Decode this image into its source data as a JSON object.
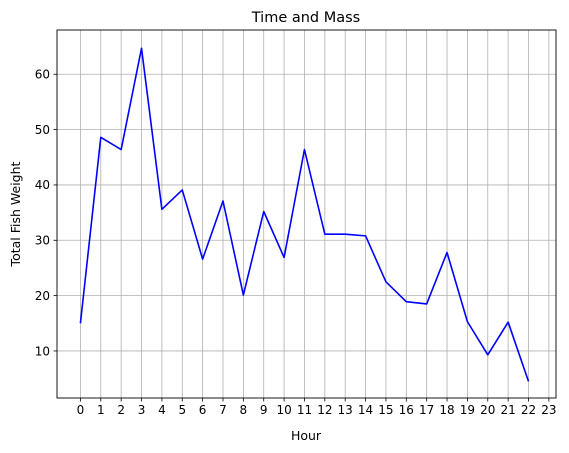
{
  "chart_data": {
    "type": "line",
    "title": "Time and Mass",
    "xlabel": "Hour",
    "ylabel": "Total Fish Weight",
    "x_ticks": [
      "0",
      "1",
      "2",
      "3",
      "4",
      "5",
      "6",
      "7",
      "8",
      "9",
      "10",
      "11",
      "12",
      "13",
      "14",
      "15",
      "16",
      "17",
      "18",
      "19",
      "20",
      "21",
      "22",
      "23"
    ],
    "y_ticks": [
      "10",
      "20",
      "30",
      "40",
      "50",
      "60"
    ],
    "xlim": [
      -1.15,
      23.35
    ],
    "ylim": [
      1.5,
      68.0
    ],
    "grid": true,
    "series": [
      {
        "color": "#0000ff",
        "x": [
          0,
          1,
          2,
          3,
          4,
          5,
          6,
          7,
          8,
          9,
          10,
          11,
          12,
          13,
          14,
          15,
          16,
          17,
          18,
          19,
          20,
          21,
          22
        ],
        "y": [
          15.0,
          48.6,
          46.4,
          64.7,
          35.6,
          39.1,
          26.6,
          37.1,
          20.1,
          35.2,
          26.9,
          46.4,
          31.1,
          31.1,
          30.8,
          22.5,
          18.9,
          18.5,
          27.8,
          15.3,
          9.3,
          15.2,
          4.5
        ]
      }
    ]
  }
}
